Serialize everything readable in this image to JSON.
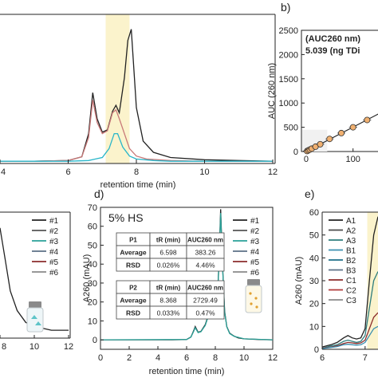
{
  "chart_data": [
    {
      "panel": "a",
      "type": "line",
      "xlabel": "retention time (min)",
      "ylabel": "",
      "xlim": [
        4,
        12
      ],
      "x_ticks": [
        "4",
        "6",
        "8",
        "10",
        "12"
      ],
      "highlight_x": [
        7.1,
        7.8
      ],
      "series": [
        {
          "color": "#222222",
          "x": [
            4,
            5,
            6,
            6.4,
            6.6,
            6.72,
            6.85,
            7.0,
            7.15,
            7.3,
            7.4,
            7.5,
            7.65,
            7.75,
            7.85,
            8.0,
            8.2,
            8.5,
            9,
            10,
            11,
            12
          ],
          "y": [
            3,
            3,
            4,
            9,
            40,
            95,
            60,
            42,
            45,
            70,
            78,
            68,
            115,
            165,
            180,
            75,
            30,
            15,
            8,
            5,
            4,
            3
          ]
        },
        {
          "color": "#c87878",
          "x": [
            4,
            5,
            6,
            6.4,
            6.6,
            6.72,
            6.85,
            7.0,
            7.15,
            7.3,
            7.4,
            7.5,
            7.65,
            7.8,
            8.0,
            8.3,
            9,
            10,
            12
          ],
          "y": [
            3,
            3,
            4,
            9,
            35,
            85,
            55,
            40,
            44,
            68,
            72,
            60,
            40,
            20,
            10,
            6,
            4,
            3,
            3
          ]
        },
        {
          "color": "#29b6c9",
          "x": [
            4,
            5,
            6,
            6.6,
            6.8,
            7.0,
            7.2,
            7.35,
            7.45,
            7.6,
            7.8,
            8.0,
            8.5,
            9,
            12
          ],
          "y": [
            3,
            3,
            3,
            4,
            6,
            8,
            20,
            40,
            40,
            22,
            10,
            6,
            4,
            3,
            3
          ]
        }
      ]
    },
    {
      "panel": "b",
      "type": "scatter",
      "ylabel": "AUC (260 nm)",
      "ylim": [
        0,
        2500
      ],
      "y_ticks": [
        "0",
        "500",
        "1000",
        "1500",
        "2000",
        "2500"
      ],
      "x_ticks": [
        "0",
        "100"
      ],
      "xlim": [
        -10,
        160
      ],
      "annotation_lines": [
        "(AUC260 nm)",
        "5.039 (ng TDi"
      ],
      "points": [
        {
          "x": 2,
          "y": 10
        },
        {
          "x": 5,
          "y": 25
        },
        {
          "x": 8,
          "y": 40
        },
        {
          "x": 12,
          "y": 60
        },
        {
          "x": 20,
          "y": 100
        },
        {
          "x": 30,
          "y": 150
        },
        {
          "x": 50,
          "y": 260
        },
        {
          "x": 75,
          "y": 380
        },
        {
          "x": 100,
          "y": 500
        },
        {
          "x": 130,
          "y": 650
        }
      ],
      "fit_line": {
        "x": [
          0,
          155
        ],
        "y": [
          0,
          780
        ]
      }
    },
    {
      "panel": "c",
      "type": "line",
      "xlim": [
        8,
        12
      ],
      "x_ticks": [
        "8",
        "10",
        "12"
      ],
      "legend": [
        "#1",
        "#2",
        "#3",
        "#4",
        "#5",
        "#6"
      ],
      "legend_colors": [
        "#222222",
        "#555555",
        "#2aa198",
        "#5b7086",
        "#8b2b2b",
        "#8a8a8a"
      ],
      "series": [
        {
          "color": "#222222",
          "x": [
            8,
            8.3,
            8.6,
            9,
            9.5,
            10,
            11,
            12
          ],
          "y": [
            14,
            10,
            6,
            3.5,
            2,
            1.5,
            1.0,
            1.0
          ]
        }
      ]
    },
    {
      "panel": "d",
      "type": "line",
      "title": "5% HS",
      "xlabel": "retention time (min)",
      "ylabel": "A260 (mAU)",
      "xlim": [
        0,
        12
      ],
      "ylim": [
        -5,
        70
      ],
      "x_ticks": [
        "0",
        "2",
        "4",
        "6",
        "8",
        "10",
        "12"
      ],
      "y_ticks": [
        "0",
        "10",
        "20",
        "30",
        "40",
        "50",
        "60",
        "70"
      ],
      "legend": [
        "#1",
        "#2",
        "#3",
        "#4",
        "#5",
        "#6"
      ],
      "legend_colors": [
        "#222222",
        "#555555",
        "#2aa198",
        "#5b7086",
        "#8b2b2b",
        "#8a8a8a"
      ],
      "series": [
        {
          "color": "#222222",
          "x": [
            0,
            1,
            2,
            3,
            4,
            5,
            6,
            6.3,
            6.5,
            6.6,
            6.8,
            7.0,
            7.3,
            7.6,
            7.8,
            8.0,
            8.15,
            8.25,
            8.37,
            8.5,
            8.65,
            8.8,
            9,
            9.3,
            9.6,
            10,
            11,
            12
          ],
          "y": [
            0,
            0,
            0,
            0,
            0,
            0,
            0.2,
            1.5,
            5,
            7,
            4,
            4.5,
            8,
            15,
            25,
            28,
            23,
            40,
            69,
            40,
            15,
            7,
            3.5,
            2,
            1,
            0.5,
            0.2,
            0
          ]
        },
        {
          "color": "#2aa198",
          "x": [
            0,
            6,
            6.3,
            6.5,
            6.6,
            6.8,
            7.0,
            7.3,
            7.6,
            7.8,
            8.0,
            8.15,
            8.25,
            8.37,
            8.5,
            8.65,
            8.8,
            9,
            9.3,
            10,
            12
          ],
          "y": [
            0,
            0.2,
            1.4,
            4.6,
            6.4,
            3.8,
            4.3,
            7.6,
            14.5,
            24,
            27,
            22,
            39,
            67,
            39,
            14.5,
            6.8,
            3.3,
            1.9,
            0.5,
            0
          ]
        }
      ],
      "tables": [
        {
          "header": [
            "P1",
            "tR (min)",
            "AUC260 nm"
          ],
          "rows": [
            [
              "Average",
              "6.598",
              "383.26"
            ],
            [
              "RSD",
              "0.026%",
              "4.46%"
            ]
          ]
        },
        {
          "header": [
            "P2",
            "tR (min)",
            "AUC260 nm"
          ],
          "rows": [
            [
              "Average",
              "8.368",
              "2729.49"
            ],
            [
              "RSD",
              "0.033%",
              "0.47%"
            ]
          ]
        }
      ]
    },
    {
      "panel": "e",
      "type": "line",
      "ylabel": "A260 (mAU)",
      "xlim": [
        6,
        7.3
      ],
      "ylim": [
        0,
        60
      ],
      "x_ticks": [
        "6",
        "7"
      ],
      "y_ticks": [
        "0",
        "10",
        "20",
        "30",
        "40",
        "50",
        "60"
      ],
      "highlight_x": [
        7.05,
        7.3
      ],
      "legend": [
        "A1",
        "A2",
        "A3",
        "B1",
        "B2",
        "B3",
        "C1",
        "C2",
        "C3"
      ],
      "legend_colors": [
        "#222222",
        "#4a4a4a",
        "#2e7d7d",
        "#3a8fb0",
        "#1e6f8a",
        "#5b7086",
        "#8b2b2b",
        "#b03a3a",
        "#8a8a8a"
      ],
      "series": [
        {
          "color": "#222222",
          "x": [
            6.0,
            6.2,
            6.35,
            6.5,
            6.6,
            6.7,
            6.8,
            6.9,
            7.0,
            7.1,
            7.2,
            7.3
          ],
          "y": [
            1,
            2,
            3,
            5,
            6,
            5,
            4.5,
            5,
            9,
            30,
            50,
            58
          ]
        },
        {
          "color": "#2e7d7d",
          "x": [
            6.0,
            6.2,
            6.35,
            6.5,
            6.6,
            6.7,
            6.8,
            6.9,
            7.0,
            7.1,
            7.2,
            7.3
          ],
          "y": [
            0.5,
            1.5,
            2,
            3.5,
            4,
            3.5,
            3,
            3.5,
            6,
            18,
            30,
            34
          ]
        },
        {
          "color": "#8b2b2b",
          "x": [
            6.0,
            6.2,
            6.35,
            6.5,
            6.6,
            6.7,
            6.8,
            6.9,
            7.0,
            7.1,
            7.2,
            7.3
          ],
          "y": [
            0.5,
            1,
            1.5,
            2.5,
            3,
            2.8,
            2.5,
            2.8,
            4,
            9,
            14,
            16
          ]
        },
        {
          "color": "#3a8fb0",
          "x": [
            6.0,
            6.2,
            6.35,
            6.5,
            6.6,
            6.7,
            6.8,
            6.9,
            7.0,
            7.1,
            7.2,
            7.3
          ],
          "y": [
            0.3,
            0.8,
            1.2,
            2,
            2.2,
            2,
            1.8,
            2,
            3,
            6,
            9,
            10
          ]
        }
      ]
    }
  ],
  "panel_labels": [
    "b)",
    "d)",
    "e)"
  ]
}
